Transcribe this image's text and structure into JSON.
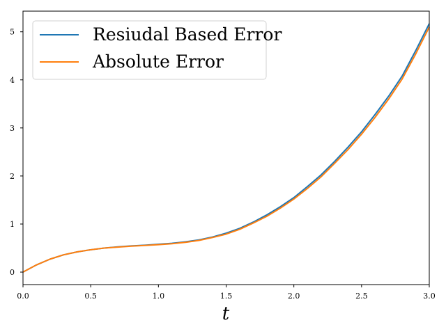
{
  "chart_data": {
    "type": "line",
    "title": "",
    "xlabel": "t",
    "ylabel": "",
    "xlim": [
      0.0,
      3.0
    ],
    "ylim": [
      -0.26,
      5.43
    ],
    "x_ticks": [
      "0.0",
      "0.5",
      "1.0",
      "1.5",
      "2.0",
      "2.5",
      "3.0"
    ],
    "y_ticks": [
      "0",
      "1",
      "2",
      "3",
      "4",
      "5"
    ],
    "grid": false,
    "legend_position": "top-left",
    "x": [
      0.0,
      0.1,
      0.2,
      0.3,
      0.4,
      0.5,
      0.6,
      0.7,
      0.8,
      0.9,
      1.0,
      1.1,
      1.2,
      1.3,
      1.4,
      1.5,
      1.6,
      1.7,
      1.8,
      1.9,
      2.0,
      2.1,
      2.2,
      2.3,
      2.4,
      2.5,
      2.6,
      2.7,
      2.8,
      2.9,
      3.0
    ],
    "series": [
      {
        "name": "Resiudal Based Error",
        "color": "#1f77b4",
        "values": [
          0.0,
          0.15,
          0.27,
          0.36,
          0.42,
          0.465,
          0.5,
          0.525,
          0.545,
          0.56,
          0.58,
          0.6,
          0.63,
          0.67,
          0.73,
          0.81,
          0.91,
          1.04,
          1.19,
          1.36,
          1.55,
          1.78,
          2.02,
          2.3,
          2.6,
          2.92,
          3.28,
          3.66,
          4.08,
          4.61,
          5.17
        ]
      },
      {
        "name": "Absolute Error",
        "color": "#ff7f0e",
        "values": [
          0.0,
          0.15,
          0.27,
          0.36,
          0.42,
          0.465,
          0.5,
          0.52,
          0.54,
          0.555,
          0.57,
          0.59,
          0.62,
          0.66,
          0.72,
          0.79,
          0.89,
          1.02,
          1.16,
          1.33,
          1.52,
          1.74,
          1.98,
          2.26,
          2.55,
          2.87,
          3.22,
          3.6,
          4.02,
          4.54,
          5.1
        ]
      }
    ]
  }
}
